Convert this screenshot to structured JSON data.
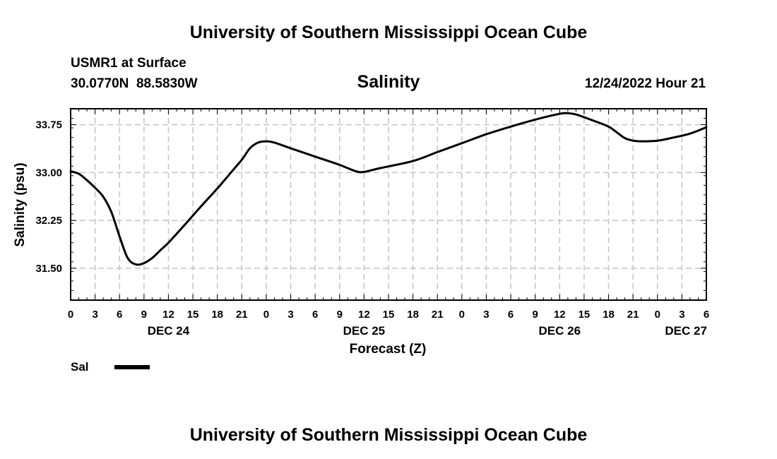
{
  "header": {
    "title": "University of Southern Mississippi Ocean Cube",
    "station": "USMR1 at Surface",
    "coords": "30.0770N  88.5830W",
    "variable": "Salinity",
    "timestamp": "12/24/2022 Hour 21"
  },
  "footer": {
    "title": "University of Southern Mississippi Ocean Cube"
  },
  "chart_data": {
    "type": "line",
    "title": "Salinity",
    "xlabel": "Forecast (Z)",
    "ylabel": "Salinity (psu)",
    "x_unit": "hours from DEC 24 00Z",
    "xlim": [
      0,
      78
    ],
    "ylim": [
      31.0,
      34.0
    ],
    "grid": true,
    "legend": "bottom-left",
    "y_ticks": [
      31.5,
      32.25,
      33.0,
      33.75
    ],
    "y_tick_labels": [
      "31.50",
      "32.25",
      "33.00",
      "33.75"
    ],
    "x_ticks": [
      0,
      3,
      6,
      9,
      12,
      15,
      18,
      21,
      24,
      27,
      30,
      33,
      36,
      39,
      42,
      45,
      48,
      51,
      54,
      57,
      60,
      63,
      66,
      69,
      72,
      75,
      78
    ],
    "x_tick_labels": [
      "0",
      "3",
      "6",
      "9",
      "12",
      "15",
      "18",
      "21",
      "0",
      "3",
      "6",
      "9",
      "12",
      "15",
      "18",
      "21",
      "0",
      "3",
      "6",
      "9",
      "12",
      "15",
      "18",
      "21",
      "0",
      "3",
      "6"
    ],
    "day_labels": [
      {
        "hour": 12,
        "label": "DEC 24"
      },
      {
        "hour": 36,
        "label": "DEC 25"
      },
      {
        "hour": 60,
        "label": "DEC 26"
      },
      {
        "hour": 75.5,
        "label": "DEC 27"
      }
    ],
    "series": [
      {
        "name": "Sal",
        "color": "#000000",
        "x": [
          0,
          1,
          2,
          3,
          4,
          5,
          6,
          7,
          8,
          9,
          10,
          11,
          12,
          14,
          16,
          18,
          20,
          21,
          22,
          23,
          24,
          25,
          27,
          30,
          33,
          35,
          36,
          38,
          42,
          45,
          48,
          51,
          54,
          57,
          60,
          61,
          62,
          64,
          66,
          67,
          68,
          69,
          70,
          72,
          74,
          76,
          78
        ],
        "y": [
          33.02,
          32.98,
          32.88,
          32.76,
          32.62,
          32.38,
          32.0,
          31.66,
          31.56,
          31.58,
          31.66,
          31.78,
          31.9,
          32.18,
          32.47,
          32.75,
          33.05,
          33.2,
          33.38,
          33.47,
          33.49,
          33.47,
          33.38,
          33.25,
          33.12,
          33.02,
          33.01,
          33.07,
          33.18,
          33.32,
          33.46,
          33.6,
          33.72,
          33.83,
          33.92,
          33.93,
          33.91,
          33.82,
          33.72,
          33.63,
          33.54,
          33.5,
          33.49,
          33.5,
          33.55,
          33.61,
          33.71
        ]
      }
    ]
  }
}
